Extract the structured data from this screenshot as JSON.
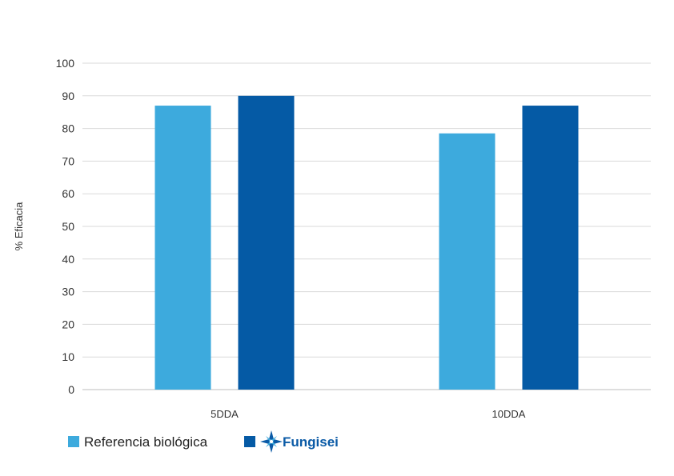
{
  "chart_data": {
    "type": "bar",
    "categories": [
      "5DDA",
      "10DDA"
    ],
    "series": [
      {
        "name": "Referencia biológica",
        "values": [
          87,
          78.5
        ],
        "color": "#3daadd"
      },
      {
        "name": "Fungisei",
        "values": [
          90,
          87
        ],
        "color": "#055aa5"
      }
    ],
    "title": "",
    "xlabel": "",
    "ylabel": "% Eficacia",
    "ylim": [
      0,
      100
    ],
    "yticks": [
      0,
      10,
      20,
      30,
      40,
      50,
      60,
      70,
      80,
      90,
      100
    ],
    "grid": true,
    "legend_position": "bottom-left"
  },
  "legend": {
    "reference_label": "Referencia biológica",
    "brand_label": "Fungisei",
    "brand_logo_icon": "fungisei-star-logo-icon",
    "brand_color": "#0a5aa6"
  }
}
